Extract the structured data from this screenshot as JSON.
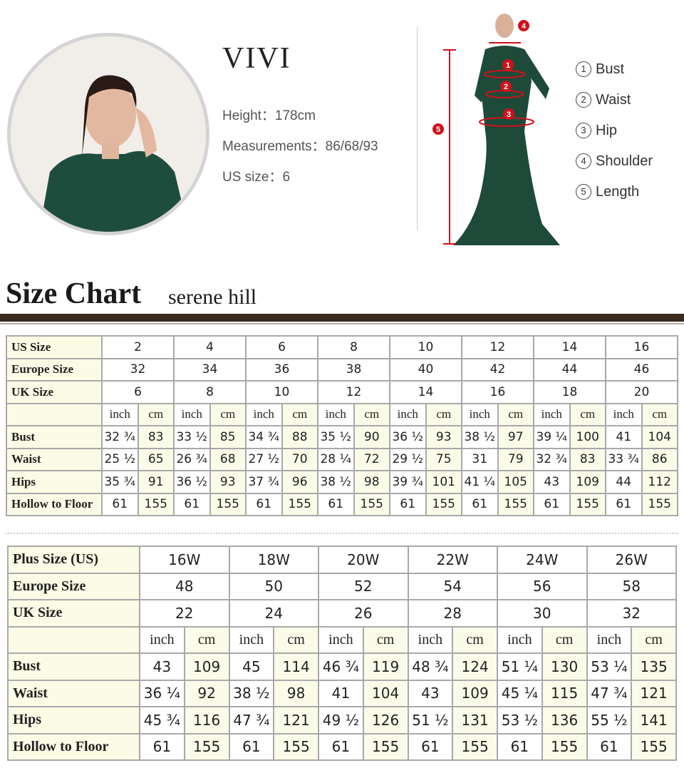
{
  "model": {
    "name": "VIVI",
    "height": "Height：178cm",
    "measurements": "Measurements：86/68/93",
    "us_size": "US size：6"
  },
  "measure_guide": {
    "markers": [
      "1",
      "2",
      "3",
      "4",
      "5"
    ],
    "legend": [
      {
        "num": "1",
        "label": "Bust"
      },
      {
        "num": "2",
        "label": "Waist"
      },
      {
        "num": "3",
        "label": "Hip"
      },
      {
        "num": "4",
        "label": "Shoulder"
      },
      {
        "num": "5",
        "label": "Length"
      }
    ],
    "marker_color": "#d0101a"
  },
  "size_chart": {
    "title": "Size Chart",
    "brand": "serene hill"
  },
  "standard_table": {
    "header_rows": [
      {
        "label": "US Size",
        "values": [
          "2",
          "4",
          "6",
          "8",
          "10",
          "12",
          "14",
          "16"
        ]
      },
      {
        "label": "Europe Size",
        "values": [
          "32",
          "34",
          "36",
          "38",
          "40",
          "42",
          "44",
          "46"
        ]
      },
      {
        "label": "UK Size",
        "values": [
          "6",
          "8",
          "10",
          "12",
          "14",
          "16",
          "18",
          "20"
        ]
      }
    ],
    "units": [
      "inch",
      "cm"
    ],
    "rows": [
      {
        "label": "Bust",
        "values": [
          "32 ¾",
          "83",
          "33 ½",
          "85",
          "34 ¾",
          "88",
          "35 ½",
          "90",
          "36 ½",
          "93",
          "38 ½",
          "97",
          "39 ¼",
          "100",
          "41",
          "104"
        ]
      },
      {
        "label": "Waist",
        "values": [
          "25 ½",
          "65",
          "26 ¾",
          "68",
          "27 ½",
          "70",
          "28 ¼",
          "72",
          "29 ½",
          "75",
          "31",
          "79",
          "32 ¾",
          "83",
          "33 ¾",
          "86"
        ]
      },
      {
        "label": "Hips",
        "values": [
          "35 ¾",
          "91",
          "36 ½",
          "93",
          "37 ¾",
          "96",
          "38 ½",
          "98",
          "39 ¾",
          "101",
          "41 ¼",
          "105",
          "43",
          "109",
          "44",
          "112"
        ]
      },
      {
        "label": "Hollow to Floor",
        "values": [
          "61",
          "155",
          "61",
          "155",
          "61",
          "155",
          "61",
          "155",
          "61",
          "155",
          "61",
          "155",
          "61",
          "155",
          "61",
          "155"
        ]
      }
    ]
  },
  "plus_table": {
    "header_rows": [
      {
        "label": "Plus Size (US)",
        "values": [
          "16W",
          "18W",
          "20W",
          "22W",
          "24W",
          "26W"
        ]
      },
      {
        "label": "Europe Size",
        "values": [
          "48",
          "50",
          "52",
          "54",
          "56",
          "58"
        ]
      },
      {
        "label": "UK Size",
        "values": [
          "22",
          "24",
          "26",
          "28",
          "30",
          "32"
        ]
      }
    ],
    "units": [
      "inch",
      "cm"
    ],
    "rows": [
      {
        "label": "Bust",
        "values": [
          "43",
          "109",
          "45",
          "114",
          "46 ¾",
          "119",
          "48 ¾",
          "124",
          "51 ¼",
          "130",
          "53 ¼",
          "135"
        ]
      },
      {
        "label": "Waist",
        "values": [
          "36 ¼",
          "92",
          "38 ½",
          "98",
          "41",
          "104",
          "43",
          "109",
          "45 ¼",
          "115",
          "47 ¾",
          "121"
        ]
      },
      {
        "label": "Hips",
        "values": [
          "45 ¾",
          "116",
          "47 ¾",
          "121",
          "49 ½",
          "126",
          "51 ½",
          "131",
          "53 ½",
          "136",
          "55 ½",
          "141"
        ]
      },
      {
        "label": "Hollow to Floor",
        "values": [
          "61",
          "155",
          "61",
          "155",
          "61",
          "155",
          "61",
          "155",
          "61",
          "155",
          "61",
          "155"
        ]
      }
    ]
  }
}
